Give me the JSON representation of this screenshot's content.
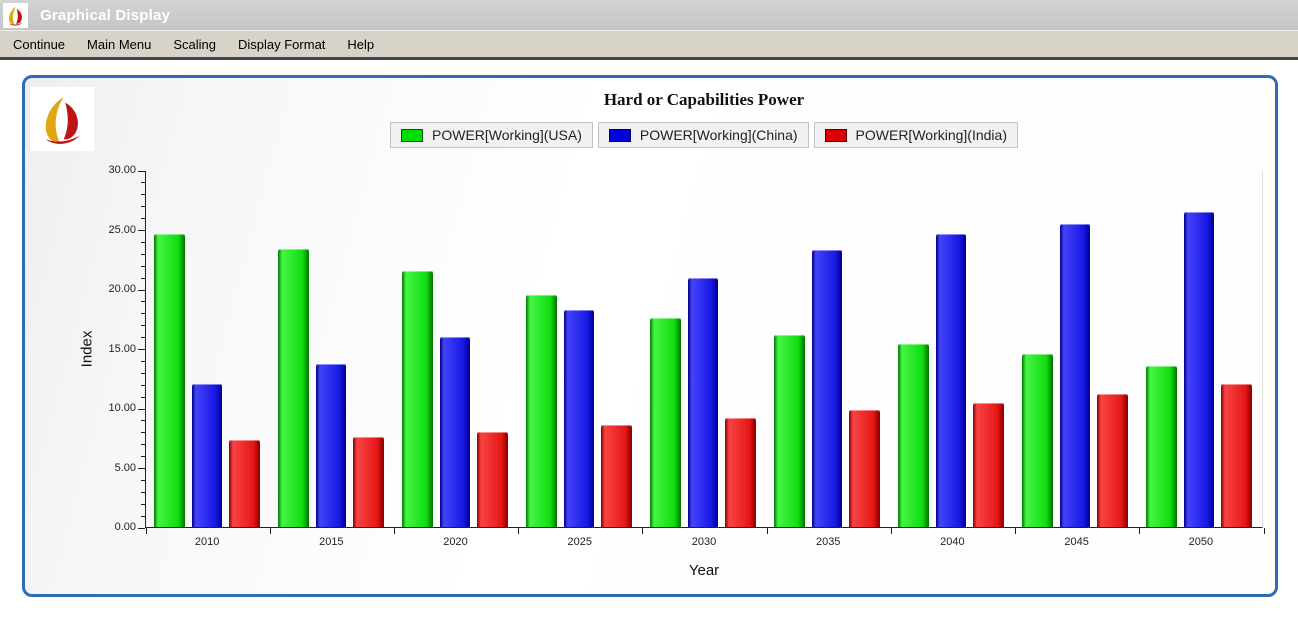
{
  "window": {
    "title": "Graphical Display",
    "titlebar_icon": "ifs-flame-icon"
  },
  "menubar": {
    "items": [
      "Continue",
      "Main Menu",
      "Scaling",
      "Display Format",
      "Help"
    ]
  },
  "panel": {
    "logo_icon": "ifs-flame-logo",
    "border_color": "#2e6cb4"
  },
  "chart_data": {
    "type": "bar",
    "title": "Hard or Capabilities Power",
    "xlabel": "Year",
    "ylabel": "Index",
    "ylim": [
      0,
      30
    ],
    "ytick_step": 5,
    "minor_tick_step": 1,
    "ytick_labels": [
      "0.00",
      "5.00",
      "10.00",
      "15.00",
      "20.00",
      "25.00",
      "30.00"
    ],
    "grid": false,
    "legend_position": "top-center",
    "categories": [
      "2010",
      "2015",
      "2020",
      "2025",
      "2030",
      "2035",
      "2040",
      "2045",
      "2050"
    ],
    "series": [
      {
        "name": "POWER[Working](USA)",
        "color": "#00dd00",
        "color_light": "#44f544",
        "color_mid": "#11dd11",
        "color_dark": "#007500",
        "values": [
          24.6,
          23.4,
          21.5,
          19.5,
          17.6,
          16.1,
          15.4,
          14.5,
          13.5
        ]
      },
      {
        "name": "POWER[Working](China)",
        "color": "#0000dd",
        "color_light": "#4444f8",
        "color_mid": "#1717e6",
        "color_dark": "#000088",
        "values": [
          12.0,
          13.7,
          16.0,
          18.2,
          20.9,
          23.3,
          24.6,
          25.5,
          26.5
        ]
      },
      {
        "name": "POWER[Working](India)",
        "color": "#dd0000",
        "color_light": "#f84444",
        "color_mid": "#e61717",
        "color_dark": "#880000",
        "values": [
          7.3,
          7.6,
          8.0,
          8.6,
          9.2,
          9.8,
          10.4,
          11.2,
          12.0
        ]
      }
    ]
  }
}
